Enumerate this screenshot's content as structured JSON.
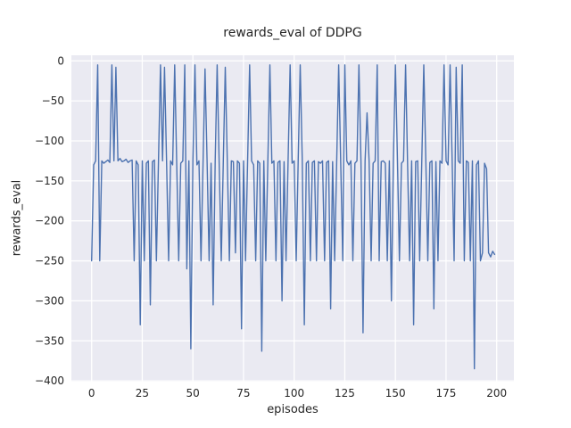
{
  "chart_data": {
    "type": "line",
    "title": "rewards_eval of DDPG",
    "xlabel": "episodes",
    "ylabel": "rewards_eval",
    "x_ticks": [
      0,
      25,
      50,
      75,
      100,
      125,
      150,
      175,
      200
    ],
    "y_ticks": [
      0,
      -50,
      -100,
      -150,
      -200,
      -250,
      -300,
      -350,
      -400
    ],
    "xlim": [
      -10,
      208.5
    ],
    "ylim": [
      -401,
      7
    ],
    "grid": true,
    "legend": false,
    "colors": {
      "line": "#4c72b0",
      "plot_background": "#eaeaf2",
      "grid": "#ffffff",
      "text": "#262626",
      "figure_background": "#ffffff"
    },
    "series": [
      {
        "name": "rewards_eval",
        "x_start": 0,
        "x_step": 1,
        "values": [
          -250,
          -130,
          -125,
          -5,
          -250,
          -125,
          -128,
          -126,
          -124,
          -127,
          -5,
          -125,
          -8,
          -125,
          -122,
          -126,
          -125,
          -123,
          -127,
          -125,
          -124,
          -250,
          -125,
          -130,
          -330,
          -125,
          -250,
          -128,
          -125,
          -305,
          -126,
          -124,
          -250,
          -127,
          -5,
          -125,
          -8,
          -126,
          -250,
          -125,
          -130,
          -5,
          -125,
          -250,
          -128,
          -125,
          -5,
          -260,
          -125,
          -360,
          -126,
          -5,
          -130,
          -125,
          -250,
          -127,
          -10,
          -125,
          -250,
          -128,
          -305,
          -125,
          -5,
          -130,
          -250,
          -125,
          -8,
          -127,
          -250,
          -125,
          -126,
          -240,
          -125,
          -128,
          -335,
          -125,
          -250,
          -127,
          -5,
          -125,
          -130,
          -250,
          -125,
          -128,
          -363,
          -125,
          -250,
          -126,
          -5,
          -128,
          -125,
          -250,
          -127,
          -125,
          -300,
          -126,
          -250,
          -125,
          -5,
          -128,
          -125,
          -250,
          -126,
          -5,
          -125,
          -330,
          -128,
          -125,
          -250,
          -127,
          -125,
          -250,
          -126,
          -128,
          -125,
          -250,
          -127,
          -125,
          -310,
          -126,
          -250,
          -125,
          -5,
          -128,
          -250,
          -5,
          -125,
          -130,
          -125,
          -250,
          -128,
          -125,
          -5,
          -126,
          -340,
          -125,
          -65,
          -125,
          -250,
          -128,
          -125,
          -5,
          -250,
          -126,
          -125,
          -128,
          -250,
          -125,
          -300,
          -126,
          -5,
          -125,
          -250,
          -128,
          -125,
          -5,
          -127,
          -250,
          -125,
          -330,
          -126,
          -125,
          -250,
          -128,
          -5,
          -125,
          -250,
          -127,
          -125,
          -310,
          -126,
          -250,
          -125,
          -128,
          -5,
          -125,
          -130,
          -5,
          -125,
          -250,
          -8,
          -125,
          -128,
          -5,
          -250,
          -125,
          -127,
          -250,
          -125,
          -385,
          -130,
          -125,
          -250,
          -240,
          -128,
          -135,
          -240,
          -245,
          -238,
          -242
        ]
      }
    ]
  }
}
